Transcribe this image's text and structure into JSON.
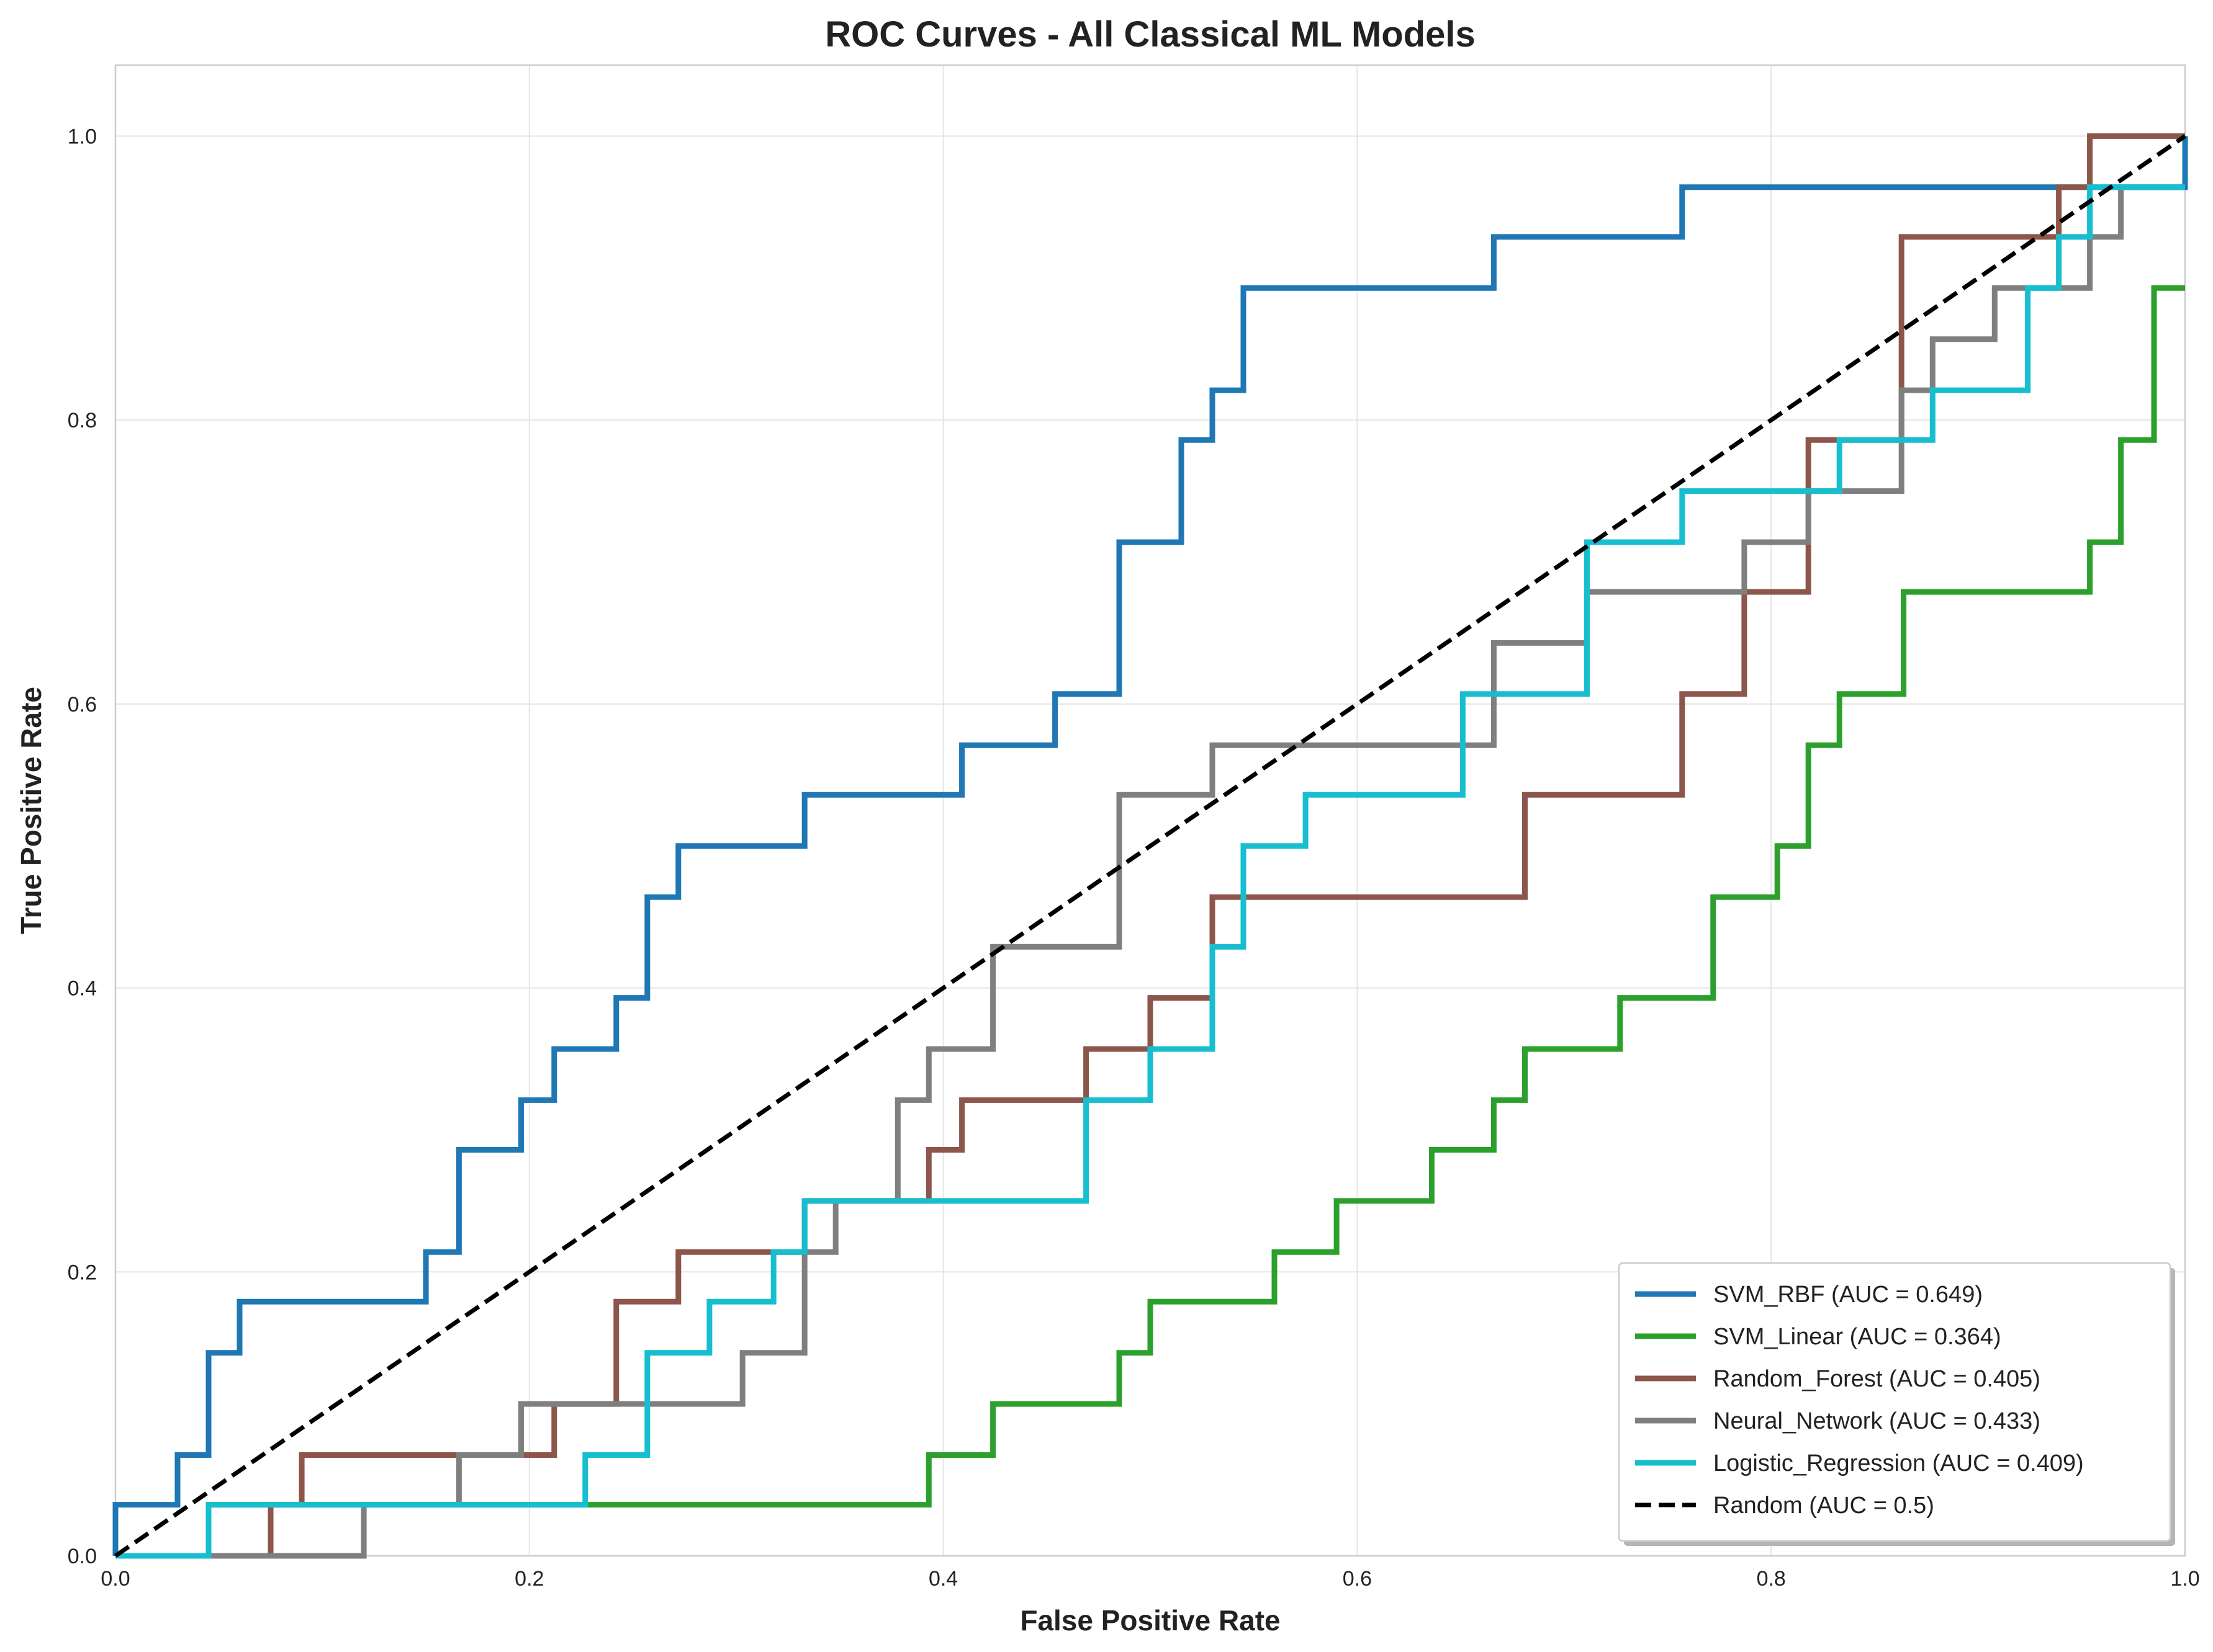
{
  "chart_data": {
    "type": "line",
    "title": "ROC Curves - All Classical ML Models",
    "xlabel": "False Positive Rate",
    "ylabel": "True Positive Rate",
    "xlim": [
      0.0,
      1.0
    ],
    "ylim": [
      0.0,
      1.05
    ],
    "xticks": [
      "0.0",
      "0.2",
      "0.4",
      "0.6",
      "0.8",
      "1.0"
    ],
    "yticks": [
      "0.0",
      "0.2",
      "0.4",
      "0.6",
      "0.8",
      "1.0"
    ],
    "grid": true,
    "legend_position": "lower-right",
    "series": [
      {
        "name": "SVM_RBF (AUC = 0.649)",
        "color": "#1f77b4",
        "style": "solid",
        "x": [
          0.0,
          0.0,
          0.03,
          0.03,
          0.045,
          0.045,
          0.06,
          0.06,
          0.15,
          0.15,
          0.166,
          0.166,
          0.196,
          0.196,
          0.212,
          0.212,
          0.242,
          0.242,
          0.257,
          0.257,
          0.272,
          0.272,
          0.333,
          0.333,
          0.409,
          0.409,
          0.454,
          0.454,
          0.485,
          0.485,
          0.515,
          0.515,
          0.53,
          0.53,
          0.545,
          0.545,
          0.666,
          0.666,
          0.757,
          0.757,
          1.0,
          1.0
        ],
        "y": [
          0.0,
          0.036,
          0.036,
          0.071,
          0.071,
          0.143,
          0.143,
          0.179,
          0.179,
          0.214,
          0.214,
          0.286,
          0.286,
          0.321,
          0.321,
          0.357,
          0.357,
          0.393,
          0.393,
          0.464,
          0.464,
          0.5,
          0.5,
          0.536,
          0.536,
          0.571,
          0.571,
          0.607,
          0.607,
          0.714,
          0.714,
          0.786,
          0.786,
          0.821,
          0.821,
          0.893,
          0.893,
          0.929,
          0.929,
          0.964,
          0.964,
          1.0
        ]
      },
      {
        "name": "SVM_Linear (AUC = 0.364)",
        "color": "#2ca02c",
        "style": "solid",
        "x": [
          0.0,
          0.045,
          0.045,
          0.393,
          0.393,
          0.424,
          0.424,
          0.485,
          0.485,
          0.5,
          0.5,
          0.56,
          0.56,
          0.59,
          0.59,
          0.636,
          0.636,
          0.666,
          0.666,
          0.681,
          0.681,
          0.727,
          0.727,
          0.772,
          0.772,
          0.803,
          0.803,
          0.818,
          0.818,
          0.833,
          0.833,
          0.864,
          0.864,
          0.954,
          0.954,
          0.969,
          0.969,
          0.985,
          0.985,
          1.0
        ],
        "y": [
          0.0,
          0.0,
          0.036,
          0.036,
          0.071,
          0.071,
          0.107,
          0.107,
          0.143,
          0.143,
          0.179,
          0.179,
          0.214,
          0.214,
          0.25,
          0.25,
          0.286,
          0.286,
          0.321,
          0.321,
          0.357,
          0.357,
          0.393,
          0.393,
          0.464,
          0.464,
          0.5,
          0.5,
          0.571,
          0.571,
          0.607,
          0.607,
          0.679,
          0.679,
          0.714,
          0.714,
          0.786,
          0.786,
          0.893,
          0.893
        ]
      },
      {
        "name": "Random_Forest (AUC = 0.405)",
        "color": "#8c564b",
        "style": "solid",
        "x": [
          0.0,
          0.075,
          0.075,
          0.09,
          0.09,
          0.212,
          0.212,
          0.242,
          0.242,
          0.272,
          0.272,
          0.333,
          0.333,
          0.363,
          0.363,
          0.393,
          0.393,
          0.409,
          0.409,
          0.469,
          0.469,
          0.5,
          0.5,
          0.53,
          0.53,
          0.681,
          0.681,
          0.757,
          0.757,
          0.787,
          0.787,
          0.818,
          0.818,
          0.863,
          0.863,
          0.939,
          0.939,
          0.954,
          0.954,
          0.985,
          0.985,
          1.0
        ],
        "y": [
          0.0,
          0.0,
          0.036,
          0.036,
          0.071,
          0.071,
          0.107,
          0.107,
          0.179,
          0.179,
          0.214,
          0.214,
          0.25,
          0.25,
          0.25,
          0.25,
          0.286,
          0.286,
          0.321,
          0.321,
          0.357,
          0.357,
          0.393,
          0.393,
          0.464,
          0.464,
          0.536,
          0.536,
          0.607,
          0.607,
          0.679,
          0.679,
          0.786,
          0.786,
          0.929,
          0.929,
          0.964,
          0.964,
          1.0,
          1.0,
          1.0,
          1.0
        ]
      },
      {
        "name": "Neural_Network (AUC = 0.433)",
        "color": "#7f7f7f",
        "style": "solid",
        "x": [
          0.0,
          0.12,
          0.12,
          0.166,
          0.166,
          0.196,
          0.196,
          0.303,
          0.303,
          0.333,
          0.333,
          0.348,
          0.348,
          0.378,
          0.378,
          0.393,
          0.393,
          0.424,
          0.424,
          0.485,
          0.485,
          0.53,
          0.53,
          0.666,
          0.666,
          0.711,
          0.711,
          0.787,
          0.787,
          0.818,
          0.818,
          0.863,
          0.863,
          0.878,
          0.878,
          0.908,
          0.908,
          0.954,
          0.954,
          0.969,
          0.969,
          1.0
        ],
        "y": [
          0.0,
          0.0,
          0.036,
          0.036,
          0.071,
          0.071,
          0.107,
          0.107,
          0.143,
          0.143,
          0.214,
          0.214,
          0.25,
          0.25,
          0.321,
          0.321,
          0.357,
          0.357,
          0.429,
          0.429,
          0.536,
          0.536,
          0.571,
          0.571,
          0.643,
          0.643,
          0.679,
          0.679,
          0.714,
          0.714,
          0.75,
          0.75,
          0.821,
          0.821,
          0.857,
          0.857,
          0.893,
          0.893,
          0.929,
          0.929,
          0.964,
          0.964
        ]
      },
      {
        "name": "Logistic_Regression (AUC = 0.409)",
        "color": "#17becf",
        "style": "solid",
        "x": [
          0.0,
          0.045,
          0.045,
          0.227,
          0.227,
          0.257,
          0.257,
          0.287,
          0.287,
          0.318,
          0.318,
          0.333,
          0.333,
          0.469,
          0.469,
          0.5,
          0.5,
          0.53,
          0.53,
          0.545,
          0.545,
          0.575,
          0.575,
          0.651,
          0.651,
          0.711,
          0.711,
          0.757,
          0.757,
          0.833,
          0.833,
          0.878,
          0.878,
          0.924,
          0.924,
          0.939,
          0.939,
          0.954,
          0.954,
          1.0
        ],
        "y": [
          0.0,
          0.0,
          0.036,
          0.036,
          0.071,
          0.071,
          0.143,
          0.143,
          0.179,
          0.179,
          0.214,
          0.214,
          0.25,
          0.25,
          0.321,
          0.321,
          0.357,
          0.357,
          0.429,
          0.429,
          0.5,
          0.5,
          0.536,
          0.536,
          0.607,
          0.607,
          0.714,
          0.714,
          0.75,
          0.75,
          0.786,
          0.786,
          0.821,
          0.821,
          0.893,
          0.893,
          0.929,
          0.929,
          0.964,
          0.964
        ]
      },
      {
        "name": "Random (AUC = 0.5)",
        "color": "#000000",
        "style": "dashed",
        "x": [
          0.0,
          1.0
        ],
        "y": [
          0.0,
          1.0
        ]
      }
    ]
  }
}
